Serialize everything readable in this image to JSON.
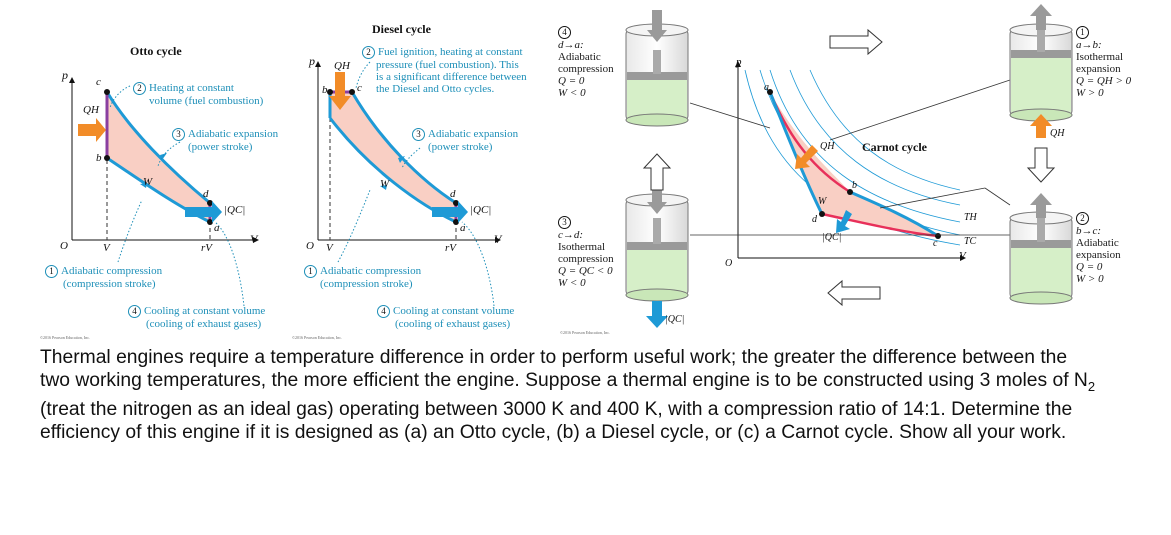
{
  "otto": {
    "title": "Otto cycle",
    "axis_p": "p",
    "axis_v": "V",
    "origin": "O",
    "tick_v": "V",
    "tick_rv": "rV",
    "qh": "QH",
    "qc": "|QC|",
    "w": "W",
    "pt_a": "a",
    "pt_b": "b",
    "pt_c": "c",
    "pt_d": "d",
    "step1_num": "1",
    "step1_a": "Adiabatic compression",
    "step1_b": "(compression stroke)",
    "step2_num": "2",
    "step2_a": "Heating at constant",
    "step2_b": "volume (fuel combustion)",
    "step3_num": "3",
    "step3_a": "Adiabatic expansion",
    "step3_b": "(power stroke)",
    "step4_num": "4",
    "step4_a": "Cooling at constant volume",
    "step4_b": "(cooling of exhaust gases)",
    "copyright": "©2016 Pearson Education, Inc."
  },
  "diesel": {
    "title": "Diesel cycle",
    "axis_p": "p",
    "axis_v": "V",
    "origin": "O",
    "tick_v": "V",
    "tick_rv": "rV",
    "qh": "QH",
    "qc": "|QC|",
    "w": "W",
    "pt_a": "a",
    "pt_b": "b",
    "pt_c": "c",
    "pt_d": "d",
    "step1_num": "1",
    "step1_a": "Adiabatic compression",
    "step1_b": "(compression stroke)",
    "step2_num": "2",
    "step2_a": "Fuel ignition, heating at constant",
    "step2_b": "pressure (fuel combustion). This",
    "step2_c": "is a significant difference between",
    "step2_d": "the Diesel and Otto cycles.",
    "step3_num": "3",
    "step3_a": "Adiabatic expansion",
    "step3_b": "(power stroke)",
    "step4_num": "4",
    "step4_a": "Cooling at constant volume",
    "step4_b": "(cooling of exhaust gases)",
    "copyright": "©2016 Pearson Education, Inc."
  },
  "carnot": {
    "title": "Carnot cycle",
    "axis_p": "p",
    "axis_v": "V",
    "origin": "O",
    "qh": "QH",
    "qc": "|QC|",
    "w": "W",
    "th": "TH",
    "tc": "TC",
    "pt_a": "a",
    "pt_b": "b",
    "pt_c": "c",
    "pt_d": "d",
    "s1_num": "1",
    "s1_a": "a→b:",
    "s1_b": "Isothermal",
    "s1_c": "expansion",
    "s1_d": "Q = QH > 0",
    "s1_e": "W > 0",
    "s2_num": "2",
    "s2_a": "b→c:",
    "s2_b": "Adiabatic",
    "s2_c": "expansion",
    "s2_d": "Q = 0",
    "s2_e": "W > 0",
    "s3_num": "3",
    "s3_a": "c→d:",
    "s3_b": "Isothermal",
    "s3_c": "compression",
    "s3_d": "Q = QC < 0",
    "s3_e": "W < 0",
    "s4_num": "4",
    "s4_a": "d→a:",
    "s4_b": "Adiabatic",
    "s4_c": "compression",
    "s4_d": "Q = 0",
    "s4_e": "W < 0",
    "qh_cyl": "QH",
    "qc_cyl": "|QC|",
    "copyright": "©2016 Pearson Education, Inc."
  },
  "problem": {
    "line1": "Thermal engines require a temperature difference in order to perform useful work; the greater the difference between the",
    "line2a": "two working temperatures, the more efficient the engine. Suppose a thermal engine is to be constructed using 3 moles of N",
    "line2sub": "2",
    "line3": "(treat the nitrogen as an ideal gas) operating between 3000 K and 400 K, with a compression ratio of 14:1. Determine the",
    "line4": "efficiency of this engine if it is designed as (a) an Otto cycle, (b) a Diesel cycle, or (c) a Carnot cycle. Show all your work."
  },
  "colors": {
    "cycle_fill": "#f9cfc4",
    "path_blue": "#1e9ad6",
    "arrow_orange": "#f28c28",
    "arrow_purple": "#8a3fa0",
    "hot_red": "#e8305a",
    "teal_text": "#1d8fb8",
    "gas_green": "#d6efc8"
  }
}
